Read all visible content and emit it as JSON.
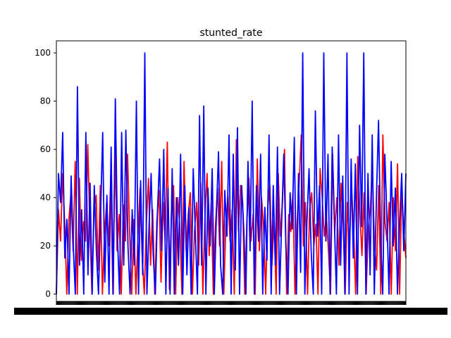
{
  "chart_data": {
    "type": "line",
    "title": "stunted_rate",
    "xlabel": "",
    "ylabel": "",
    "ylim": [
      -3,
      105
    ],
    "yticks": [
      0,
      20,
      40,
      60,
      80,
      100
    ],
    "grid": false,
    "legend": "none",
    "x_tick_labels_overlapping": true,
    "series": [
      {
        "color": "#ff0000",
        "values": [
          0,
          35,
          22,
          50,
          29,
          0,
          31,
          42,
          18,
          55,
          0,
          48,
          14,
          30,
          22,
          62,
          28,
          0,
          35,
          41,
          10,
          45,
          0,
          25,
          38,
          20,
          49,
          0,
          60,
          18,
          33,
          0,
          37,
          22,
          58,
          26,
          0,
          31,
          0,
          24,
          44,
          16,
          0,
          29,
          48,
          12,
          35,
          0,
          30,
          43,
          5,
          38,
          22,
          63,
          2,
          34,
          45,
          0,
          40,
          28,
          0,
          55,
          18,
          33,
          42,
          0,
          26,
          38,
          12,
          46,
          0,
          32,
          50,
          16,
          38,
          0,
          28,
          44,
          20,
          55,
          0,
          30,
          41,
          22,
          35,
          0,
          64,
          26,
          45,
          38,
          0,
          30,
          48,
          22,
          33,
          0,
          56,
          18,
          40,
          28,
          0,
          36,
          45,
          12,
          31,
          0,
          50,
          24,
          38,
          60,
          0,
          33,
          26,
          42,
          0,
          30,
          46,
          66,
          20,
          38,
          0,
          35,
          42,
          20,
          29,
          0,
          52,
          40,
          24,
          33,
          18,
          0,
          58,
          26,
          40,
          12,
          46,
          30,
          0,
          38,
          20,
          44,
          28,
          0,
          57,
          34,
          16,
          42,
          0,
          27,
          36,
          52,
          20,
          10,
          45,
          0,
          66,
          30,
          22,
          38,
          0,
          40,
          18,
          54,
          0,
          44,
          26,
          15
        ]
      },
      {
        "color": "#0000ff",
        "values": [
          0,
          50,
          38,
          67,
          15,
          31,
          0,
          49,
          20,
          0,
          86,
          12,
          35,
          0,
          67,
          8,
          46,
          0,
          45,
          18,
          0,
          33,
          67,
          5,
          41,
          0,
          61,
          0,
          81,
          24,
          0,
          67,
          12,
          68,
          20,
          0,
          35,
          12,
          80,
          0,
          47,
          8,
          100,
          0,
          28,
          50,
          16,
          0,
          34,
          56,
          18,
          60,
          0,
          44,
          0,
          52,
          0,
          40,
          12,
          58,
          0,
          45,
          8,
          36,
          0,
          52,
          25,
          0,
          74,
          12,
          78,
          0,
          44,
          20,
          52,
          0,
          33,
          59,
          12,
          0,
          43,
          24,
          66,
          0,
          58,
          10,
          69,
          0,
          45,
          27,
          0,
          55,
          18,
          80,
          0,
          45,
          22,
          58,
          0,
          36,
          14,
          66,
          0,
          45,
          12,
          61,
          0,
          30,
          58,
          20,
          0,
          42,
          27,
          65,
          0,
          50,
          9,
          100,
          0,
          30,
          52,
          18,
          0,
          76,
          24,
          45,
          0,
          100,
          22,
          58,
          0,
          61,
          31,
          0,
          66,
          12,
          49,
          0,
          100,
          0,
          56,
          15,
          54,
          0,
          70,
          28,
          100,
          0,
          50,
          8,
          66,
          0,
          40,
          72,
          24,
          0,
          58,
          31,
          0,
          55,
          20,
          44,
          0,
          29,
          50,
          18,
          50
        ]
      }
    ]
  }
}
